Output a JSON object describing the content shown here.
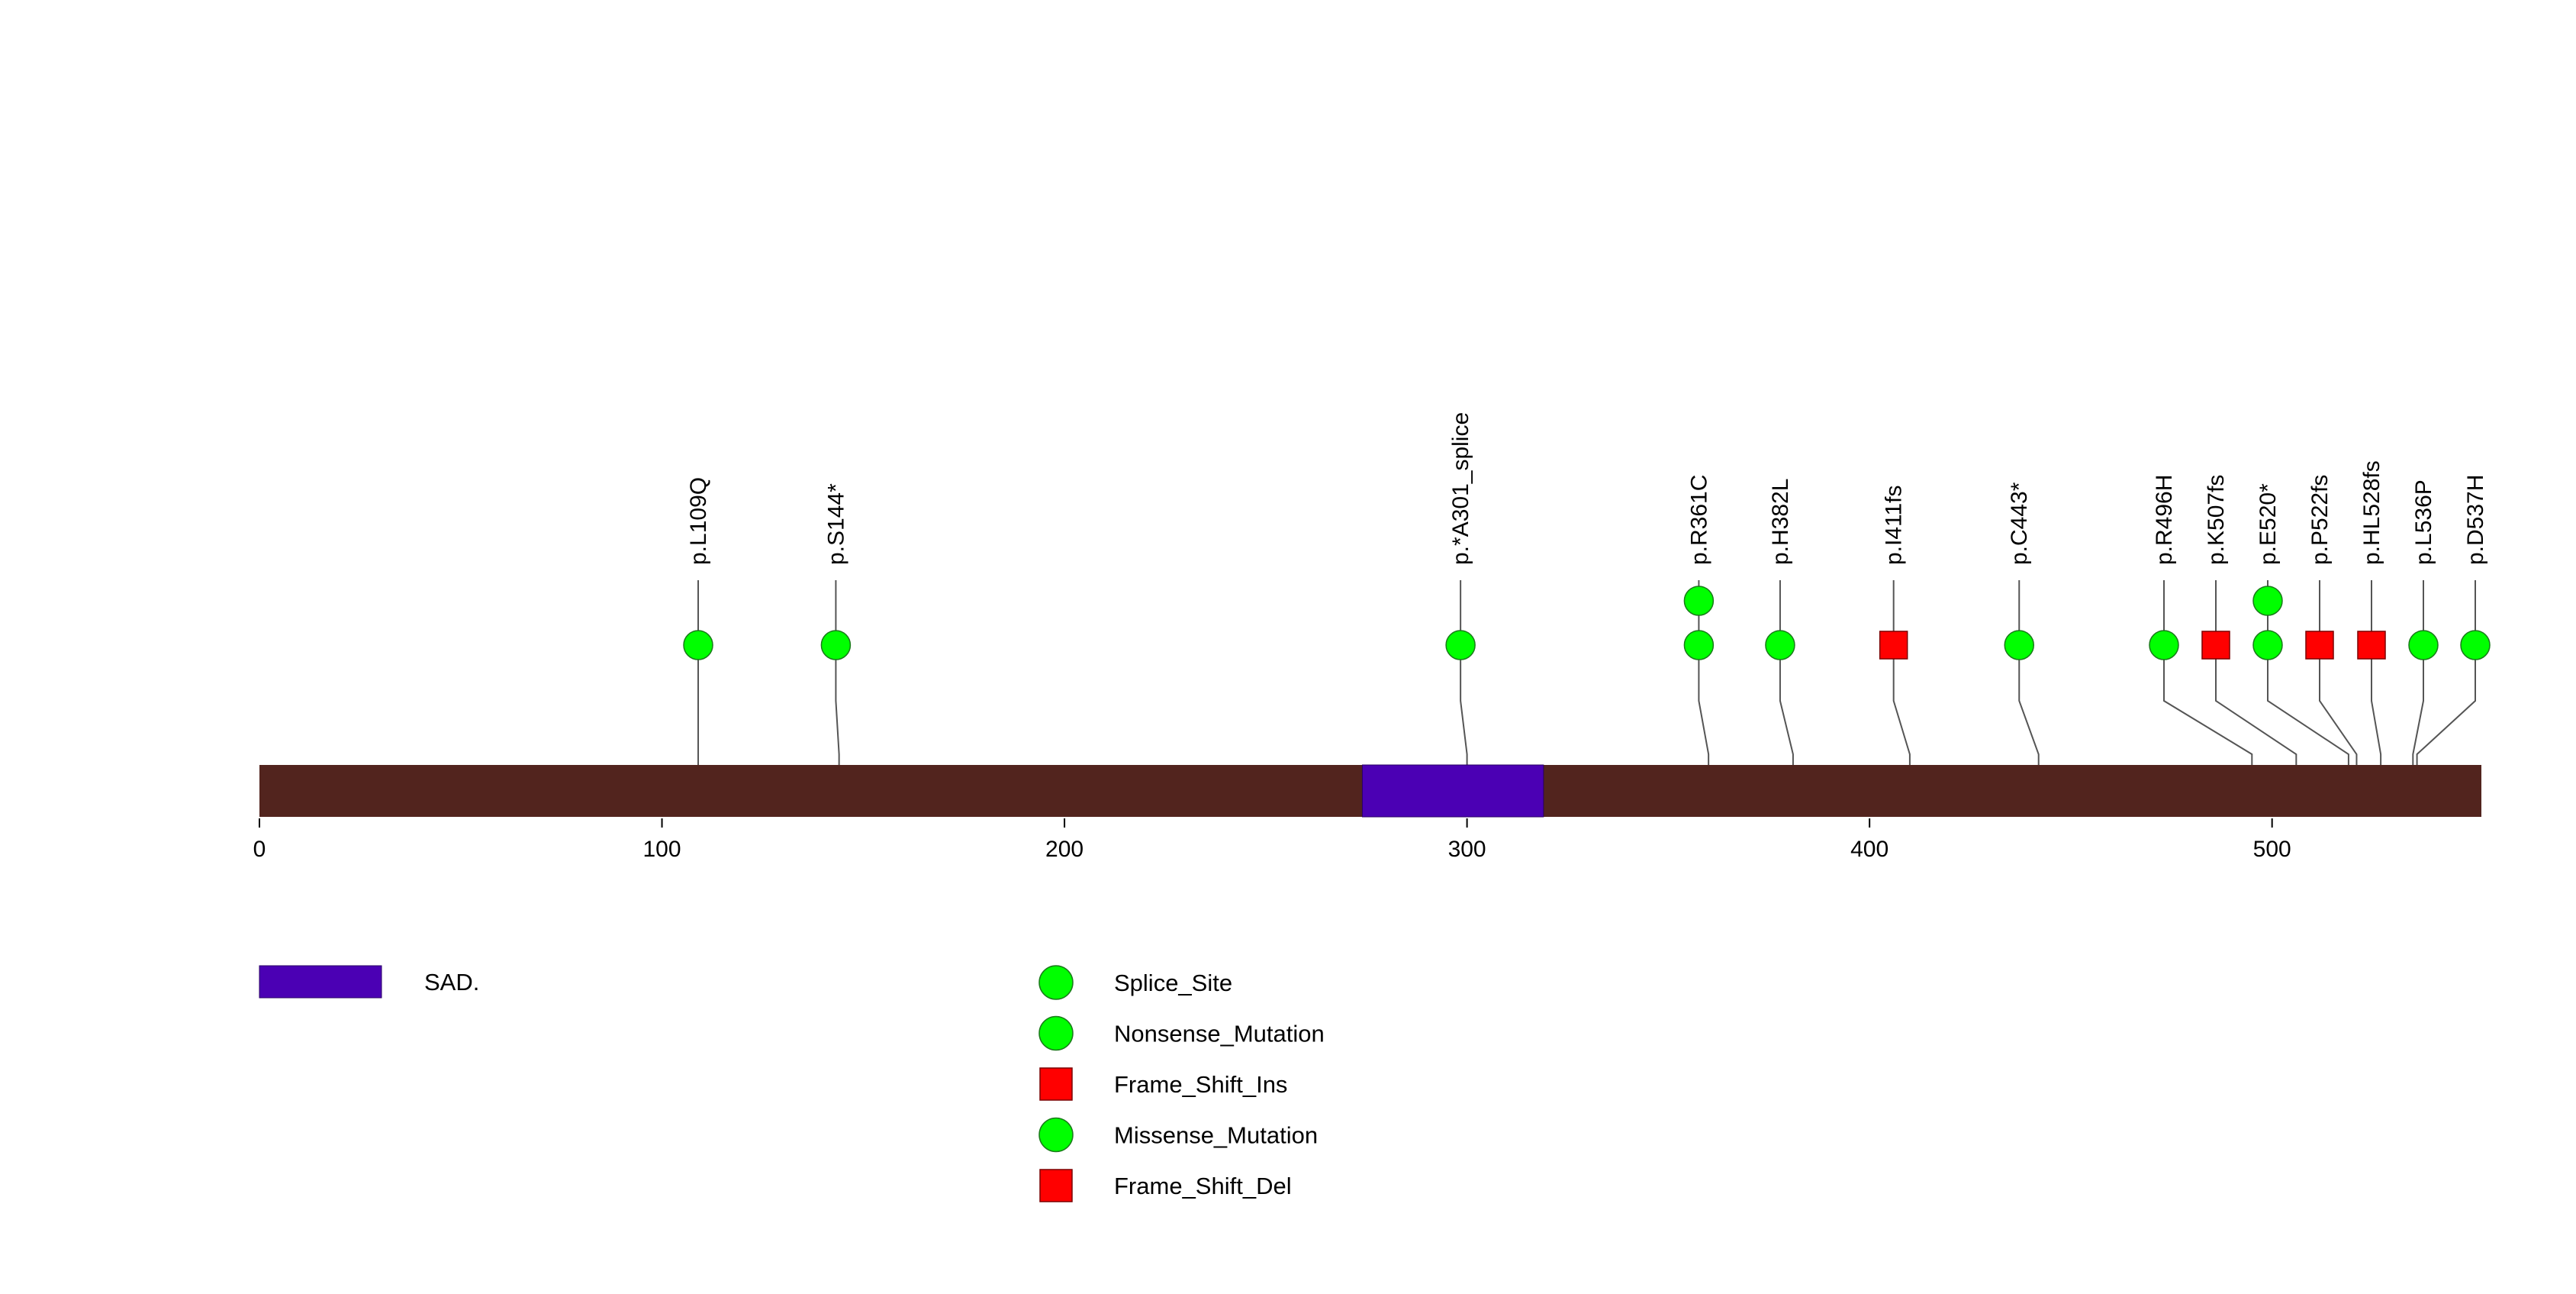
{
  "chart_data": {
    "type": "lollipop",
    "protein_length": 552,
    "axis": {
      "xlim": [
        0,
        552
      ],
      "ticks": [
        0,
        100,
        200,
        300,
        400,
        500
      ],
      "tick_labels": [
        "0",
        "100",
        "200",
        "300",
        "400",
        "500"
      ]
    },
    "domains": [
      {
        "name": "SAD.",
        "start": 274,
        "end": 319
      }
    ],
    "mutations": [
      {
        "label": "p.L109Q",
        "position": 109,
        "count": 1,
        "type": "Missense_Mutation"
      },
      {
        "label": "p.S144*",
        "position": 144,
        "count": 1,
        "type": "Nonsense_Mutation"
      },
      {
        "label": "p.*A301_splice",
        "position": 300,
        "count": 1,
        "type": "Splice_Site"
      },
      {
        "label": "p.R361C",
        "position": 360,
        "count": 2,
        "type": "Missense_Mutation"
      },
      {
        "label": "p.H382L",
        "position": 381,
        "count": 1,
        "type": "Missense_Mutation"
      },
      {
        "label": "p.I411fs",
        "position": 410,
        "count": 1,
        "type": "Frame_Shift_Ins"
      },
      {
        "label": "p.C443*",
        "position": 442,
        "count": 1,
        "type": "Nonsense_Mutation"
      },
      {
        "label": "p.R496H",
        "position": 495,
        "count": 1,
        "type": "Missense_Mutation"
      },
      {
        "label": "p.K507fs",
        "position": 506,
        "count": 1,
        "type": "Frame_Shift_Del"
      },
      {
        "label": "p.E520*",
        "position": 519,
        "count": 2,
        "type": "Nonsense_Mutation"
      },
      {
        "label": "p.P522fs",
        "position": 521,
        "count": 1,
        "type": "Frame_Shift_Del"
      },
      {
        "label": "p.HL528fs",
        "position": 527,
        "count": 1,
        "type": "Frame_Shift_Del"
      },
      {
        "label": "p.L536P",
        "position": 535,
        "count": 1,
        "type": "Missense_Mutation"
      },
      {
        "label": "p.D537H",
        "position": 536,
        "count": 1,
        "type": "Missense_Mutation"
      }
    ],
    "legend": {
      "domain_items": [
        {
          "label": "SAD.",
          "color": "#4b00b4"
        }
      ],
      "mutation_items": [
        {
          "label": "Splice_Site",
          "shape": "circle",
          "color": "#00ff00"
        },
        {
          "label": "Nonsense_Mutation",
          "shape": "circle",
          "color": "#00ff00"
        },
        {
          "label": "Frame_Shift_Ins",
          "shape": "square",
          "color": "#ff0000"
        },
        {
          "label": "Missense_Mutation",
          "shape": "circle",
          "color": "#00ff00"
        },
        {
          "label": "Frame_Shift_Del",
          "shape": "square",
          "color": "#ff0000"
        }
      ]
    }
  },
  "colors": {
    "backbone": "#52241e",
    "domain": "#4b00b4",
    "circle": "#00ff00",
    "square": "#ff0000",
    "stem": "#555555"
  }
}
